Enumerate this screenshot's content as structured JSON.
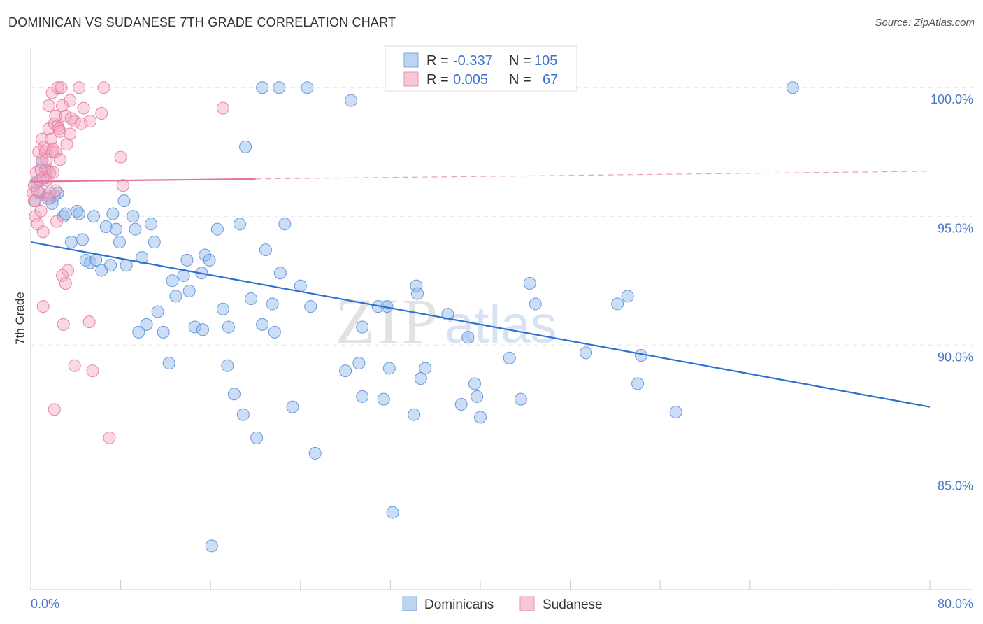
{
  "header": {
    "title": "DOMINICAN VS SUDANESE 7TH GRADE CORRELATION CHART",
    "source": "Source: ZipAtlas.com"
  },
  "chart_data": {
    "type": "scatter",
    "title": "DOMINICAN VS SUDANESE 7TH GRADE CORRELATION CHART",
    "xlabel": "",
    "ylabel": "7th Grade",
    "xlim": [
      0,
      80
    ],
    "ylim": [
      80.5,
      101.5
    ],
    "x_tick_labels": [
      "0.0%",
      "80.0%"
    ],
    "y_ticks": [
      {
        "value": 100,
        "label": "100.0%"
      },
      {
        "value": 95,
        "label": "95.0%"
      },
      {
        "value": 90,
        "label": "90.0%"
      },
      {
        "value": 85,
        "label": "85.0%"
      }
    ],
    "grid": true,
    "watermark": "ZIPatlas",
    "legend": [
      {
        "r_label": "R =",
        "r_value": "-0.337",
        "n_label": "N =",
        "n_value": "105",
        "color": "#8fb5ea"
      },
      {
        "r_label": "R =",
        "r_value": "0.005",
        "n_label": "N =",
        "n_value": "67",
        "color": "#f4a6c0"
      }
    ],
    "series": [
      {
        "name": "Dominicans",
        "color": "#8fb5ea",
        "stroke": "#5b8fd8",
        "trend": {
          "x": [
            0,
            80
          ],
          "y": [
            94.0,
            87.6
          ],
          "color": "#2f6fd0"
        },
        "points": [
          [
            0.4,
            95.6
          ],
          [
            0.5,
            96.3
          ],
          [
            0.8,
            95.9
          ],
          [
            1.0,
            97.1
          ],
          [
            1.3,
            96.8
          ],
          [
            1.4,
            96.5
          ],
          [
            1.5,
            95.8
          ],
          [
            1.7,
            95.7
          ],
          [
            1.9,
            95.5
          ],
          [
            2.1,
            95.8
          ],
          [
            2.4,
            95.9
          ],
          [
            2.9,
            95.0
          ],
          [
            3.1,
            95.1
          ],
          [
            3.6,
            94.0
          ],
          [
            4.1,
            95.2
          ],
          [
            4.3,
            95.1
          ],
          [
            4.6,
            94.1
          ],
          [
            4.9,
            93.3
          ],
          [
            5.3,
            93.2
          ],
          [
            5.8,
            93.3
          ],
          [
            5.6,
            95.0
          ],
          [
            6.3,
            92.9
          ],
          [
            6.7,
            94.6
          ],
          [
            7.1,
            93.1
          ],
          [
            7.3,
            95.1
          ],
          [
            7.6,
            94.5
          ],
          [
            7.9,
            94.0
          ],
          [
            8.3,
            95.6
          ],
          [
            8.5,
            93.1
          ],
          [
            9.1,
            95.0
          ],
          [
            9.3,
            94.5
          ],
          [
            9.9,
            93.4
          ],
          [
            10.7,
            94.7
          ],
          [
            11.0,
            94.0
          ],
          [
            11.3,
            91.3
          ],
          [
            10.3,
            90.8
          ],
          [
            9.6,
            90.5
          ],
          [
            11.8,
            90.5
          ],
          [
            12.3,
            89.3
          ],
          [
            12.6,
            92.5
          ],
          [
            12.9,
            91.9
          ],
          [
            13.6,
            92.7
          ],
          [
            13.9,
            93.3
          ],
          [
            14.1,
            92.1
          ],
          [
            14.6,
            90.7
          ],
          [
            15.2,
            92.8
          ],
          [
            15.3,
            90.6
          ],
          [
            15.5,
            93.5
          ],
          [
            15.9,
            93.3
          ],
          [
            16.6,
            94.5
          ],
          [
            17.1,
            91.4
          ],
          [
            17.6,
            90.7
          ],
          [
            17.5,
            89.2
          ],
          [
            18.1,
            88.1
          ],
          [
            18.6,
            94.7
          ],
          [
            18.9,
            87.3
          ],
          [
            19.1,
            97.7
          ],
          [
            19.6,
            91.8
          ],
          [
            20.1,
            86.4
          ],
          [
            20.6,
            90.8
          ],
          [
            20.9,
            93.7
          ],
          [
            21.5,
            91.6
          ],
          [
            21.7,
            90.5
          ],
          [
            22.2,
            92.8
          ],
          [
            22.6,
            94.7
          ],
          [
            23.3,
            87.6
          ],
          [
            24.0,
            92.3
          ],
          [
            24.9,
            91.5
          ],
          [
            25.3,
            85.8
          ],
          [
            28.0,
            89.0
          ],
          [
            29.2,
            89.3
          ],
          [
            29.5,
            90.7
          ],
          [
            29.5,
            88.0
          ],
          [
            30.9,
            91.5
          ],
          [
            31.4,
            87.9
          ],
          [
            31.7,
            91.5
          ],
          [
            31.9,
            89.1
          ],
          [
            32.2,
            83.5
          ],
          [
            34.1,
            87.3
          ],
          [
            34.3,
            92.3
          ],
          [
            34.4,
            92.0
          ],
          [
            34.7,
            88.7
          ],
          [
            35.1,
            89.1
          ],
          [
            37.1,
            91.2
          ],
          [
            38.3,
            87.7
          ],
          [
            38.9,
            90.3
          ],
          [
            39.5,
            88.5
          ],
          [
            39.7,
            88.0
          ],
          [
            40.0,
            87.2
          ],
          [
            42.6,
            89.5
          ],
          [
            43.6,
            87.9
          ],
          [
            44.4,
            92.4
          ],
          [
            44.9,
            91.6
          ],
          [
            49.4,
            89.7
          ],
          [
            52.2,
            91.6
          ],
          [
            53.1,
            91.9
          ],
          [
            54.0,
            88.5
          ],
          [
            57.4,
            87.4
          ],
          [
            24.6,
            100.0
          ],
          [
            22.1,
            100.0
          ],
          [
            20.6,
            100.0
          ],
          [
            28.5,
            99.5
          ],
          [
            67.8,
            100.0
          ],
          [
            16.1,
            82.2
          ],
          [
            54.3,
            89.6
          ]
        ]
      },
      {
        "name": "Sudanese",
        "color": "#f4a6c0",
        "stroke": "#e5789e",
        "trend": {
          "x": [
            0,
            20
          ],
          "y": [
            96.35,
            96.45
          ],
          "color": "#e8739a",
          "dashed_to": [
            80,
            96.75
          ]
        },
        "points": [
          [
            0.2,
            95.9
          ],
          [
            0.3,
            96.2
          ],
          [
            0.4,
            95.0
          ],
          [
            0.5,
            96.7
          ],
          [
            0.6,
            96.0
          ],
          [
            0.6,
            94.7
          ],
          [
            0.7,
            97.5
          ],
          [
            0.8,
            96.4
          ],
          [
            0.9,
            95.2
          ],
          [
            1.0,
            98.0
          ],
          [
            1.0,
            97.2
          ],
          [
            1.1,
            96.5
          ],
          [
            1.1,
            94.4
          ],
          [
            1.1,
            91.5
          ],
          [
            1.2,
            97.7
          ],
          [
            1.3,
            97.5
          ],
          [
            1.4,
            97.2
          ],
          [
            1.5,
            96.8
          ],
          [
            1.5,
            95.7
          ],
          [
            1.6,
            98.4
          ],
          [
            1.6,
            99.3
          ],
          [
            1.7,
            96.7
          ],
          [
            1.7,
            95.9
          ],
          [
            1.8,
            98.0
          ],
          [
            1.9,
            97.5
          ],
          [
            1.9,
            99.8
          ],
          [
            2.0,
            96.7
          ],
          [
            2.0,
            97.6
          ],
          [
            2.1,
            98.6
          ],
          [
            2.2,
            98.9
          ],
          [
            2.2,
            96.0
          ],
          [
            2.2,
            97.5
          ],
          [
            2.3,
            94.8
          ],
          [
            2.4,
            98.5
          ],
          [
            2.4,
            100.0
          ],
          [
            2.5,
            98.4
          ],
          [
            2.6,
            97.2
          ],
          [
            2.6,
            98.3
          ],
          [
            2.7,
            100.0
          ],
          [
            2.8,
            99.3
          ],
          [
            2.8,
            92.7
          ],
          [
            2.9,
            90.8
          ],
          [
            3.1,
            98.9
          ],
          [
            3.1,
            92.4
          ],
          [
            3.2,
            97.8
          ],
          [
            3.3,
            92.9
          ],
          [
            3.5,
            99.5
          ],
          [
            3.6,
            98.8
          ],
          [
            3.9,
            89.2
          ],
          [
            3.9,
            98.7
          ],
          [
            4.3,
            100.0
          ],
          [
            4.5,
            98.6
          ],
          [
            4.7,
            99.2
          ],
          [
            5.2,
            90.9
          ],
          [
            5.3,
            98.7
          ],
          [
            5.5,
            89.0
          ],
          [
            6.3,
            99.0
          ],
          [
            6.5,
            100.0
          ],
          [
            7.0,
            86.4
          ],
          [
            8.0,
            97.3
          ],
          [
            8.2,
            96.2
          ],
          [
            17.1,
            99.2
          ],
          [
            2.1,
            87.5
          ],
          [
            0.9,
            96.8
          ],
          [
            1.4,
            96.4
          ],
          [
            0.3,
            95.6
          ],
          [
            3.5,
            98.2
          ]
        ]
      }
    ]
  },
  "bottom_legend": {
    "items": [
      {
        "label": "Dominicans",
        "color": "#8fb5ea"
      },
      {
        "label": "Sudanese",
        "color": "#f4a6c0"
      }
    ]
  }
}
